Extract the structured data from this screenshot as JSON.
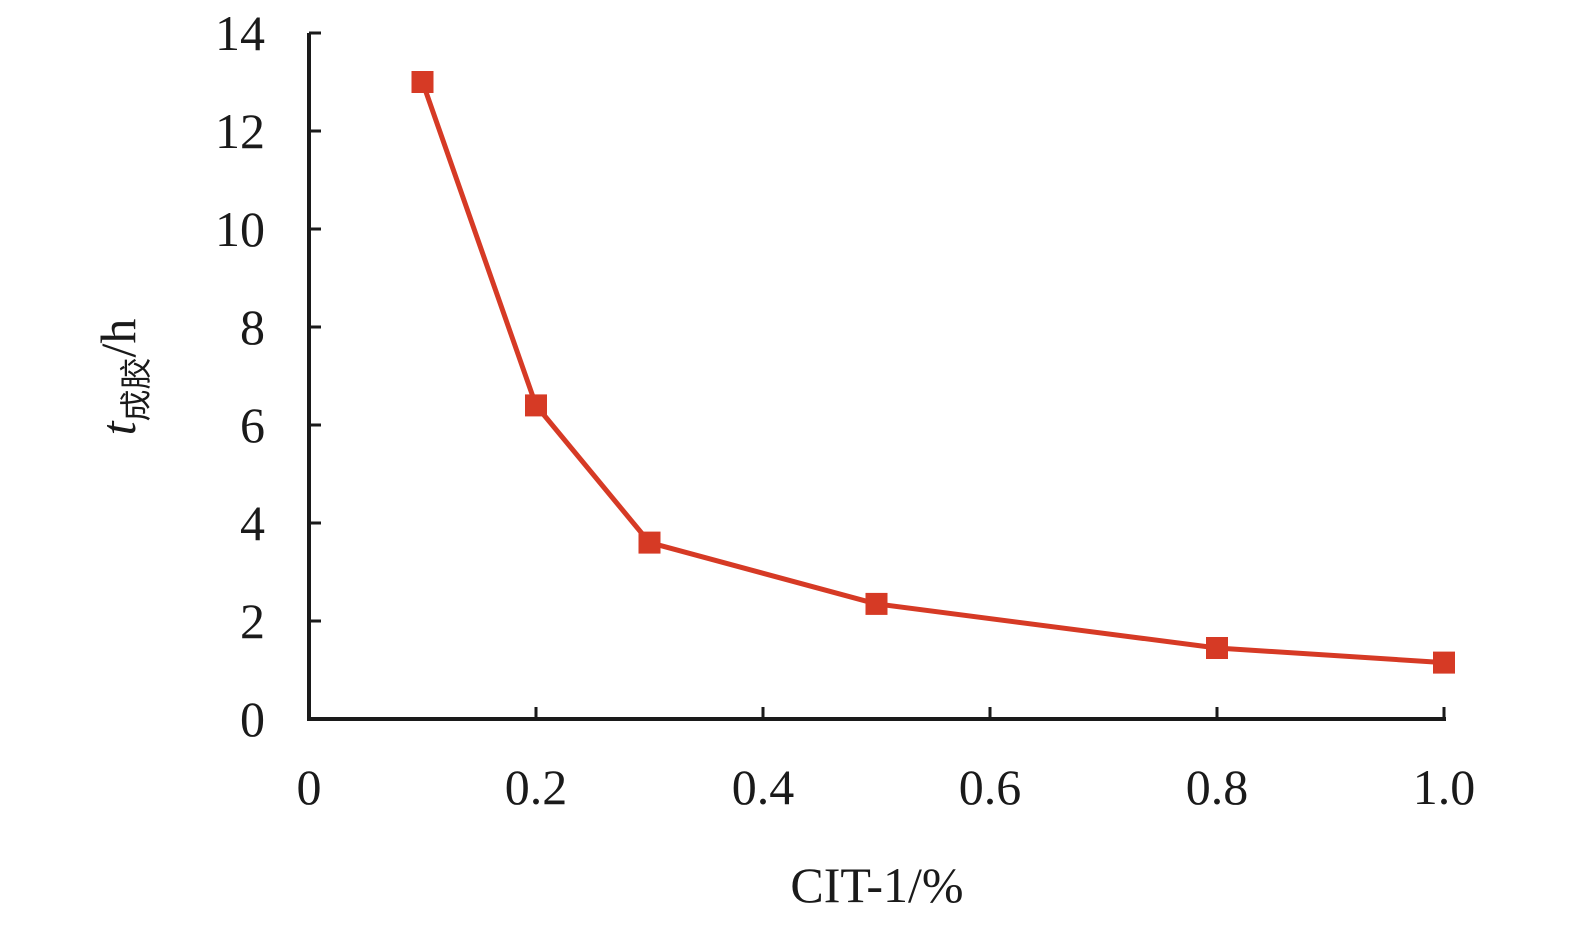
{
  "chart_data": {
    "type": "line",
    "title": "",
    "xlabel": "CIT-1/%",
    "ylabel": {
      "symbol": "t",
      "subscript": "成胶",
      "unit": "/h"
    },
    "xlim": [
      0,
      1.0
    ],
    "ylim": [
      0,
      14
    ],
    "x_ticks": [
      "0",
      "0.2",
      "0.4",
      "0.6",
      "0.8",
      "1.0"
    ],
    "y_ticks": [
      "0",
      "2",
      "4",
      "6",
      "8",
      "10",
      "12",
      "14"
    ],
    "grid": false,
    "legend": "none",
    "series": [
      {
        "color": "#d63a25",
        "marker": "square",
        "x": [
          0.1,
          0.2,
          0.3,
          0.5,
          0.8,
          1.0
        ],
        "y": [
          13.0,
          6.4,
          3.6,
          2.35,
          1.45,
          1.15
        ]
      }
    ]
  }
}
